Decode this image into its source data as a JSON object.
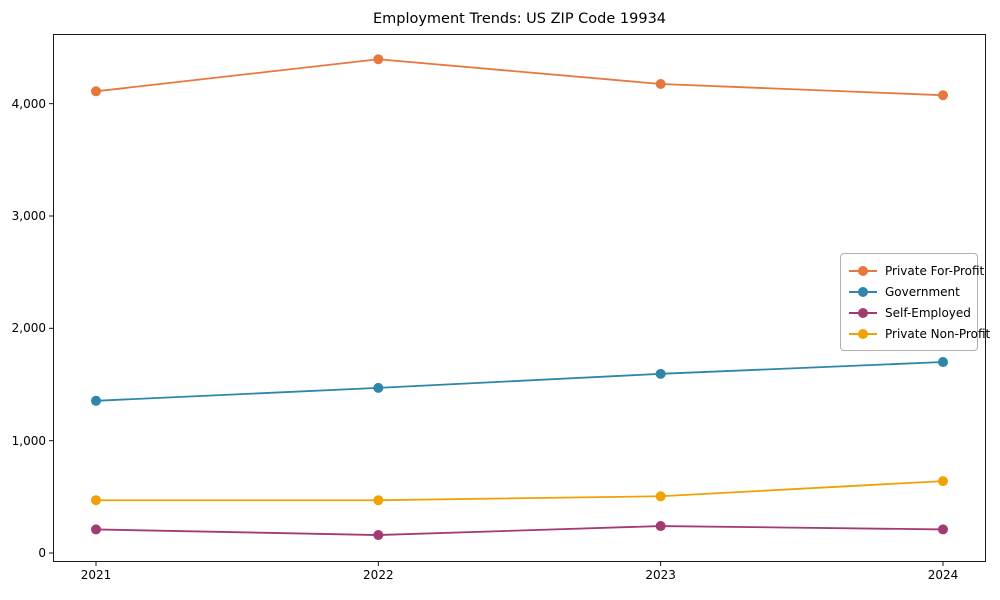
{
  "title": "Employment Trends: US ZIP Code 19934",
  "chart_data": {
    "type": "line",
    "categories": [
      "2021",
      "2022",
      "2023",
      "2024"
    ],
    "series": [
      {
        "name": "Private For-Profit",
        "color": "#e8773d",
        "values": [
          4110,
          4395,
          4175,
          4075
        ]
      },
      {
        "name": "Government",
        "color": "#2e86ab",
        "values": [
          1355,
          1470,
          1595,
          1700
        ]
      },
      {
        "name": "Self-Employed",
        "color": "#a23b72",
        "values": [
          210,
          160,
          240,
          210
        ]
      },
      {
        "name": "Private Non-Profit",
        "color": "#f0a202",
        "values": [
          470,
          470,
          505,
          640
        ]
      }
    ],
    "title": "Employment Trends: US ZIP Code 19934",
    "xlabel": "",
    "ylabel": "",
    "ylim": [
      -80,
      4620
    ],
    "yticks": {
      "values": [
        0,
        1000,
        2000,
        3000,
        4000
      ],
      "labels": [
        "0",
        "1,000",
        "2,000",
        "3,000",
        "4,000"
      ]
    },
    "xtick_labels": [
      "2021",
      "2022",
      "2023",
      "2024"
    ],
    "legend_position": "center right",
    "grid": false,
    "marker": "circle"
  }
}
